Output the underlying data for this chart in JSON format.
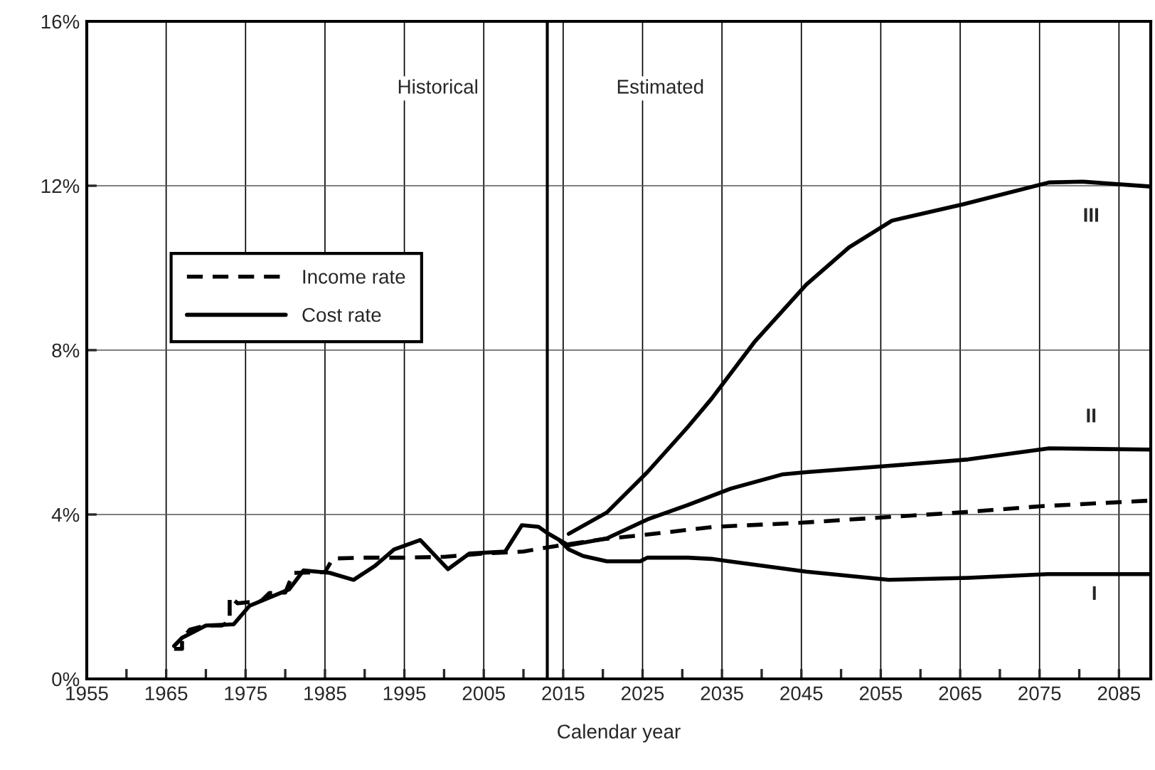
{
  "chart_data": {
    "type": "line",
    "xlabel": "Calendar year",
    "xlim": [
      1955,
      2089
    ],
    "xticks": [
      1955,
      {
        "value": 1960,
        "label": null
      },
      1965,
      {
        "value": 1970,
        "label": null
      },
      1975,
      {
        "value": 1980,
        "label": null
      },
      1985,
      {
        "value": 1990,
        "label": null
      },
      1995,
      {
        "value": 2000,
        "label": null
      },
      2005,
      {
        "value": 2010,
        "label": null
      },
      2015,
      {
        "value": 2020,
        "label": null
      },
      2025,
      {
        "value": 2030,
        "label": null
      },
      2035,
      {
        "value": 2040,
        "label": null
      },
      2045,
      {
        "value": 2050,
        "label": null
      },
      2055,
      {
        "value": 2060,
        "label": null
      },
      2065,
      {
        "value": 2070,
        "label": null
      },
      2075,
      {
        "value": 2080,
        "label": null
      },
      2085
    ],
    "ylim": [
      0,
      16
    ],
    "yticks": [
      {
        "value": 0,
        "label": "0%"
      },
      {
        "value": 4,
        "label": "4%"
      },
      {
        "value": 8,
        "label": "8%"
      },
      {
        "value": 12,
        "label": "12%"
      },
      {
        "value": 16,
        "label": "16%"
      }
    ],
    "grid": true,
    "legend": "left",
    "series": [
      {
        "name": "Income rate",
        "color": "#000000",
        "line_style": "dashed",
        "x": [
          1966,
          1967,
          1967,
          1968,
          1970,
          1972,
          1973,
          1973,
          1974,
          1977,
          1978,
          1980,
          1981,
          1985,
          1986,
          1990,
          1995,
          2000,
          2005,
          2010,
          2013,
          2020,
          2025,
          2034,
          2045,
          2056,
          2065,
          2075,
          2089
        ],
        "values": [
          0.73,
          0.73,
          0.98,
          1.2,
          1.3,
          1.3,
          1.4,
          2.0,
          1.84,
          1.9,
          2.09,
          2.1,
          2.58,
          2.6,
          2.93,
          2.95,
          2.95,
          2.97,
          3.05,
          3.1,
          3.2,
          3.4,
          3.5,
          3.7,
          3.8,
          3.94,
          4.05,
          4.2,
          4.34
        ]
      },
      {
        "name": "Cost rate",
        "color": "#000000",
        "line_style": "solid",
        "x": [
          1966,
          1967,
          1970,
          1973.5,
          1975.5,
          1980.5,
          1982.3,
          1985.6,
          1988.6,
          1991.3,
          1993.7,
          1997,
          2000.5,
          2003.2,
          2007.7,
          2009.8,
          2011.9,
          2013,
          2015.7,
          2020.5,
          2025.6,
          2030.7,
          2036.1,
          2042.7,
          2045.6,
          2055.8,
          2066,
          2076.2,
          2089
        ],
        "values": [
          0.8,
          1.0,
          1.3,
          1.33,
          1.78,
          2.18,
          2.64,
          2.58,
          2.41,
          2.75,
          3.15,
          3.38,
          2.67,
          3.05,
          3.1,
          3.74,
          3.7,
          3.55,
          3.25,
          3.42,
          3.88,
          4.23,
          4.63,
          4.98,
          5.03,
          5.18,
          5.34,
          5.61,
          5.58
        ]
      },
      {
        "color": "#000000",
        "line_style": "solid",
        "x": [
          2014.6,
          2015.7,
          2017.5,
          2020.5,
          2024.7,
          2025.6,
          2030.7,
          2033.7,
          2039.1,
          2045.6,
          2056,
          2066,
          2076,
          2089
        ],
        "values": [
          3.36,
          3.15,
          2.99,
          2.86,
          2.86,
          2.95,
          2.95,
          2.92,
          2.78,
          2.61,
          2.41,
          2.46,
          2.55,
          2.55
        ]
      },
      {
        "color": "#000000",
        "line_style": "solid",
        "x": [
          2015.7,
          2020.5,
          2025.6,
          2030.7,
          2033.7,
          2039.1,
          2045.6,
          2051,
          2056.4,
          2065.4,
          2076.2,
          2080.4,
          2089
        ],
        "values": [
          3.53,
          4.05,
          5.03,
          6.13,
          6.82,
          8.2,
          9.59,
          10.5,
          11.15,
          11.55,
          12.08,
          12.1,
          11.98
        ]
      }
    ],
    "ref_lines": [
      {
        "axis": "x",
        "value": 2013,
        "color": "#000000"
      }
    ],
    "annotations": [
      "Historical",
      "Estimated",
      "III",
      "II",
      "I"
    ]
  }
}
